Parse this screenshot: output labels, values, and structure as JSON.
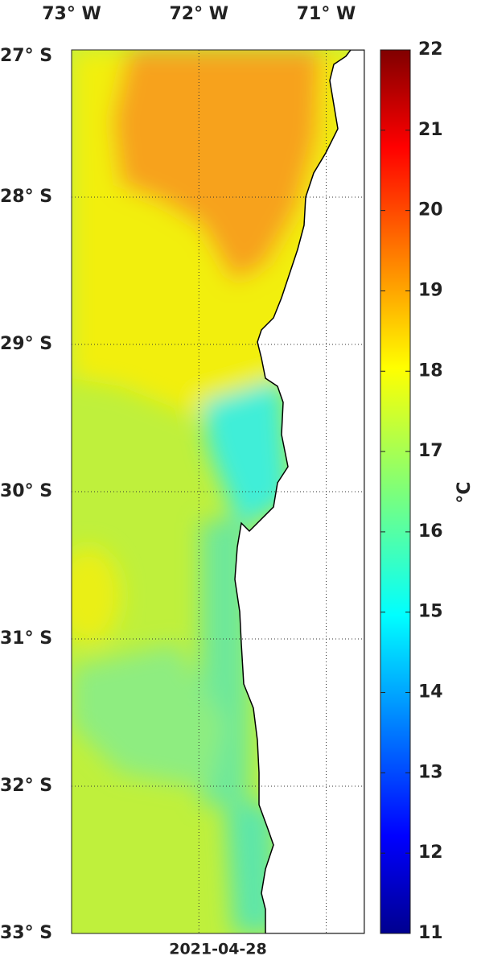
{
  "map": {
    "date": "2021-04-28",
    "lonlim": [
      -73,
      -70.7
    ],
    "latlim": [
      -27,
      -33
    ],
    "lon_ticks": [
      {
        "value": -73,
        "label": "73° W"
      },
      {
        "value": -72,
        "label": "72° W"
      },
      {
        "value": -71,
        "label": "71° W"
      }
    ],
    "lat_ticks": [
      {
        "value": -27,
        "label": "27° S"
      },
      {
        "value": -28,
        "label": "28° S"
      },
      {
        "value": -29,
        "label": "29° S"
      },
      {
        "value": -30,
        "label": "30° S"
      },
      {
        "value": -31,
        "label": "31° S"
      },
      {
        "value": -32,
        "label": "32° S"
      },
      {
        "value": -33,
        "label": "33° S"
      }
    ],
    "colorbar": {
      "label": "°C",
      "lim": [
        11,
        22
      ],
      "ticks": [
        11,
        12,
        13,
        14,
        15,
        16,
        17,
        18,
        19,
        20,
        21,
        22
      ]
    }
  }
}
